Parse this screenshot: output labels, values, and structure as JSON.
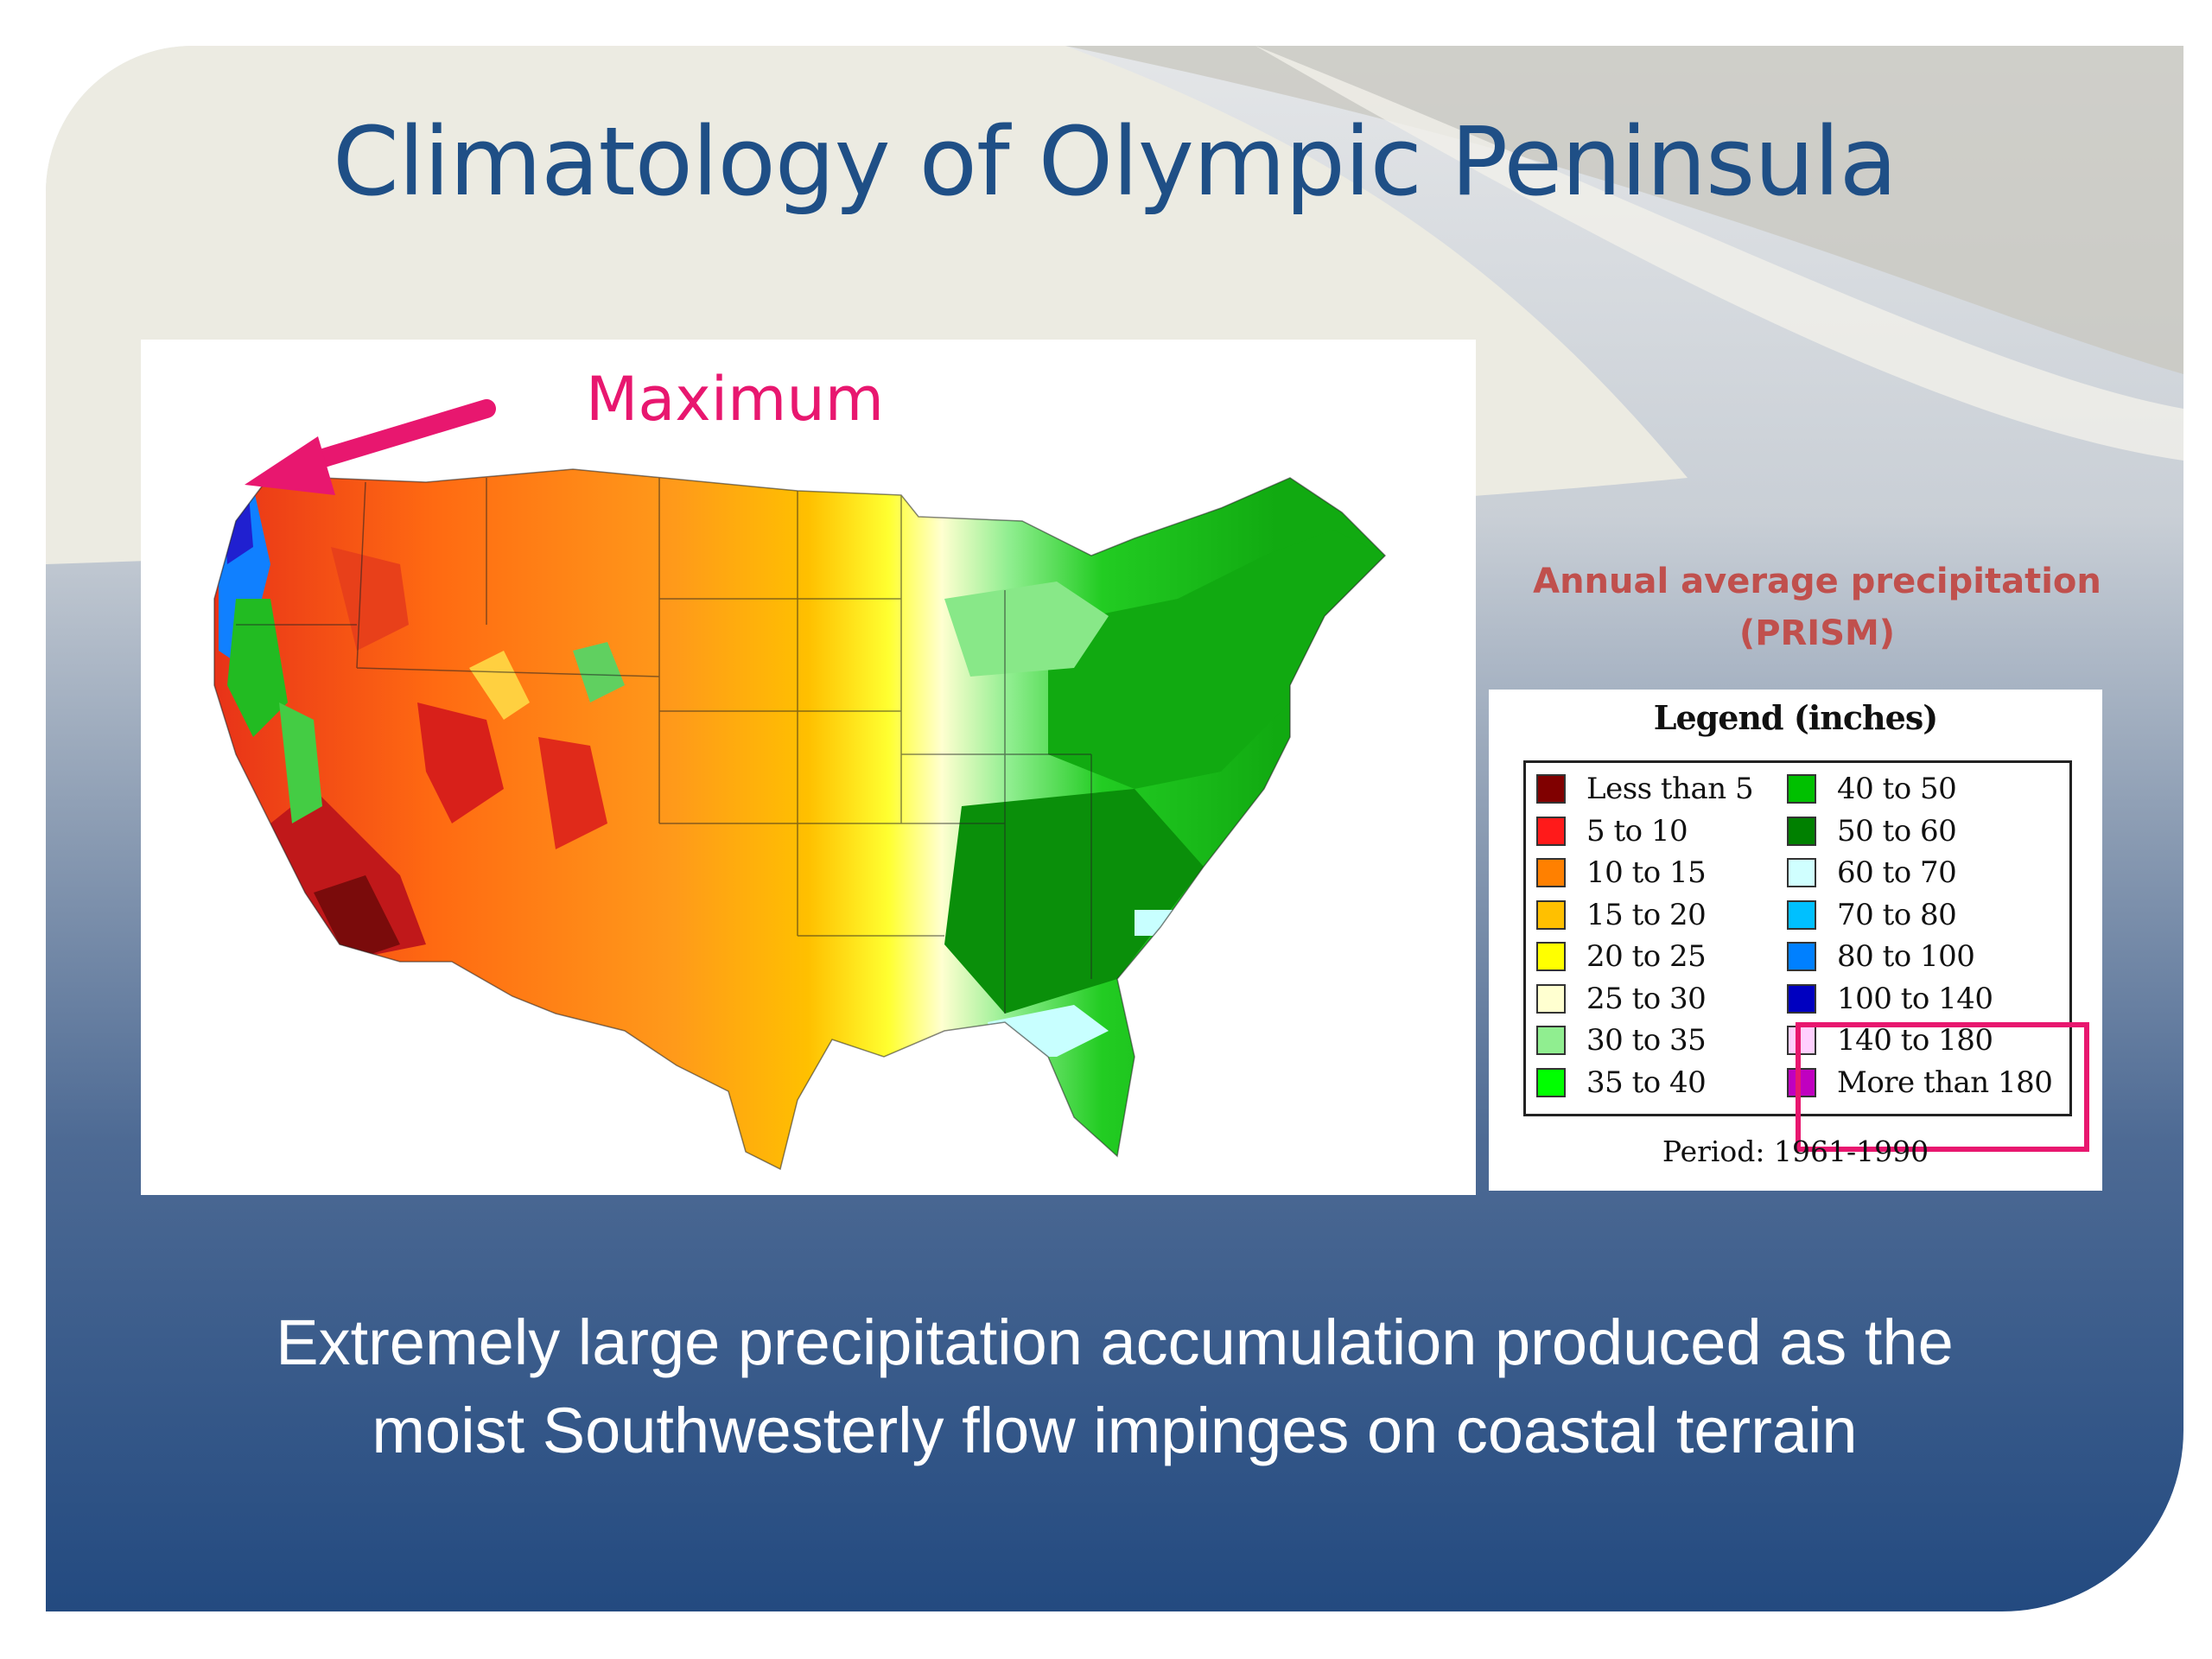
{
  "title": "Climatology of Olympic Peninsula",
  "annotation": {
    "label": "Maximum",
    "color": "#e8176f"
  },
  "legend_caption": {
    "line1": "Annual average precipitation",
    "line2": "(PRISM)"
  },
  "legend": {
    "title": "Legend (inches)",
    "items_left": [
      {
        "label": "Less than 5",
        "color": "#800000"
      },
      {
        "label": "5 to 10",
        "color": "#ff1a1a"
      },
      {
        "label": "10 to 15",
        "color": "#ff8000"
      },
      {
        "label": "15 to 20",
        "color": "#ffc000"
      },
      {
        "label": "20 to 25",
        "color": "#ffff00"
      },
      {
        "label": "25 to 30",
        "color": "#ffffd0"
      },
      {
        "label": "30 to 35",
        "color": "#90ee90"
      },
      {
        "label": "35 to 40",
        "color": "#00ff00"
      }
    ],
    "items_right": [
      {
        "label": "40 to 50",
        "color": "#00c000"
      },
      {
        "label": "50 to 60",
        "color": "#008000"
      },
      {
        "label": "60 to 70",
        "color": "#d0ffff"
      },
      {
        "label": "70 to 80",
        "color": "#00c0ff"
      },
      {
        "label": "80 to 100",
        "color": "#0080ff"
      },
      {
        "label": "100 to 140",
        "color": "#0000c0"
      },
      {
        "label": "140 to 180",
        "color": "#ffd0ff"
      },
      {
        "label": "More than 180",
        "color": "#c000c0"
      }
    ],
    "period": "Period: 1961-1990"
  },
  "caption": {
    "line1": "Extremely large precipitation accumulation produced as the",
    "line2": "moist Southwesterly flow impinges on coastal terrain"
  }
}
